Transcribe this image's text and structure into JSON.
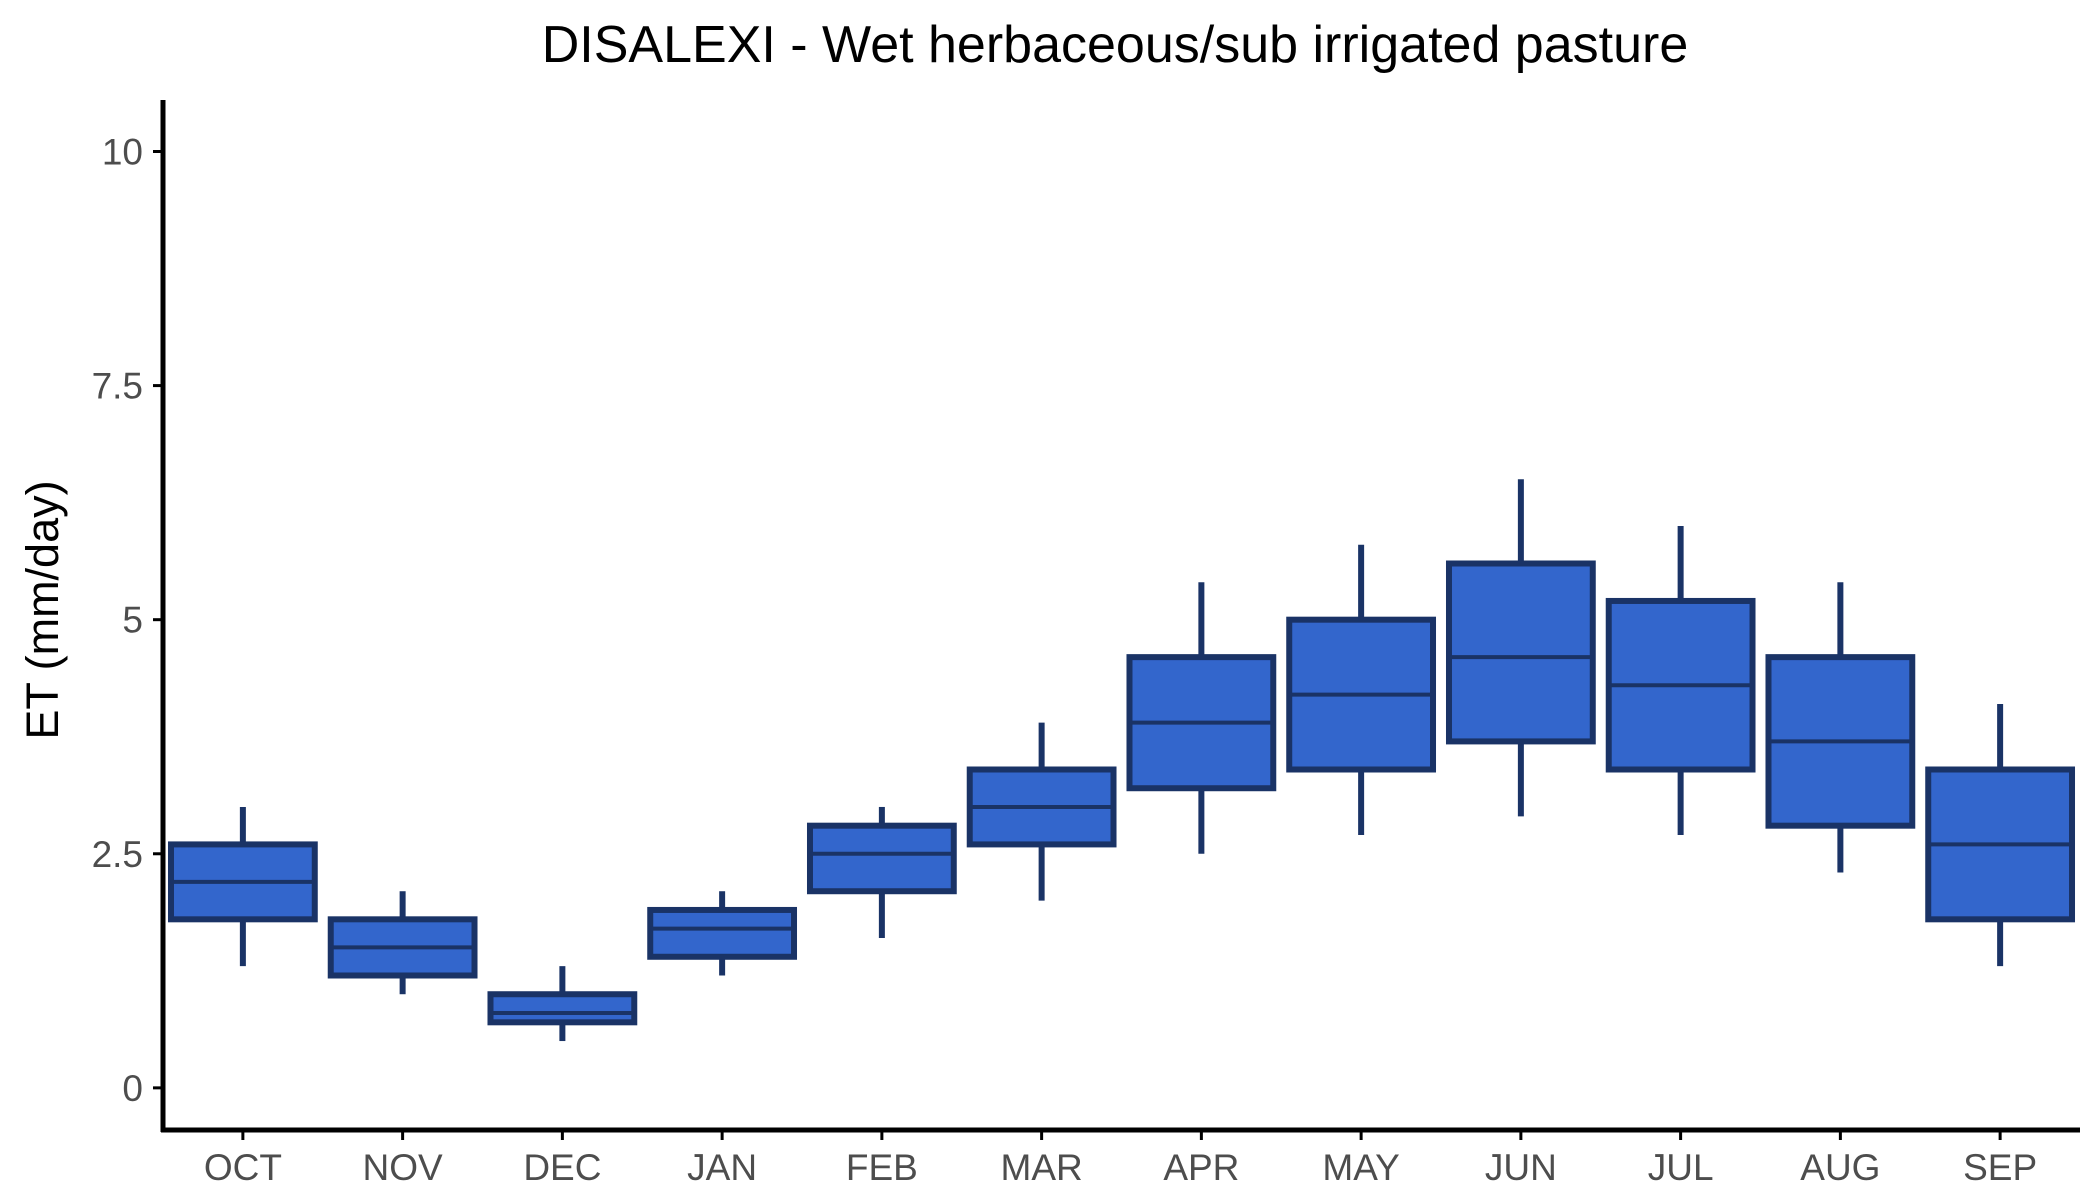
{
  "chart_data": {
    "type": "boxplot",
    "title": "DISALEXI - Wet herbaceous/sub irrigated pasture",
    "xlabel": "",
    "ylabel": "ET (mm/day)",
    "ylim": [
      -0.45,
      10.55
    ],
    "yticks": [
      0,
      2.5,
      5,
      7.5,
      10
    ],
    "ytick_labels": [
      "0",
      "2.5",
      "5",
      "7.5",
      "10"
    ],
    "grid": false,
    "legend": "none",
    "colors": {
      "box_fill": "#3366cc",
      "box_stroke": "#1a3366",
      "axis": "#000000",
      "tick_text": "#4d4d4d"
    },
    "categories": [
      "OCT",
      "NOV",
      "DEC",
      "JAN",
      "FEB",
      "MAR",
      "APR",
      "MAY",
      "JUN",
      "JUL",
      "AUG",
      "SEP"
    ],
    "boxes": [
      {
        "category": "OCT",
        "whisker_low": 1.3,
        "q1": 1.8,
        "median": 2.2,
        "q3": 2.6,
        "whisker_high": 3.0
      },
      {
        "category": "NOV",
        "whisker_low": 1.0,
        "q1": 1.2,
        "median": 1.5,
        "q3": 1.8,
        "whisker_high": 2.1
      },
      {
        "category": "DEC",
        "whisker_low": 0.5,
        "q1": 0.7,
        "median": 0.8,
        "q3": 1.0,
        "whisker_high": 1.3
      },
      {
        "category": "JAN",
        "whisker_low": 1.2,
        "q1": 1.4,
        "median": 1.7,
        "q3": 1.9,
        "whisker_high": 2.1
      },
      {
        "category": "FEB",
        "whisker_low": 1.6,
        "q1": 2.1,
        "median": 2.5,
        "q3": 2.8,
        "whisker_high": 3.0
      },
      {
        "category": "MAR",
        "whisker_low": 2.0,
        "q1": 2.6,
        "median": 3.0,
        "q3": 3.4,
        "whisker_high": 3.9
      },
      {
        "category": "APR",
        "whisker_low": 2.5,
        "q1": 3.2,
        "median": 3.9,
        "q3": 4.6,
        "whisker_high": 5.4
      },
      {
        "category": "MAY",
        "whisker_low": 2.7,
        "q1": 3.4,
        "median": 4.2,
        "q3": 5.0,
        "whisker_high": 5.8
      },
      {
        "category": "JUN",
        "whisker_low": 2.9,
        "q1": 3.7,
        "median": 4.6,
        "q3": 5.6,
        "whisker_high": 6.5
      },
      {
        "category": "JUL",
        "whisker_low": 2.7,
        "q1": 3.4,
        "median": 4.3,
        "q3": 5.2,
        "whisker_high": 6.0
      },
      {
        "category": "AUG",
        "whisker_low": 2.3,
        "q1": 2.8,
        "median": 3.7,
        "q3": 4.6,
        "whisker_high": 5.4
      },
      {
        "category": "SEP",
        "whisker_low": 1.3,
        "q1": 1.8,
        "median": 2.6,
        "q3": 3.4,
        "whisker_high": 4.1
      }
    ]
  }
}
